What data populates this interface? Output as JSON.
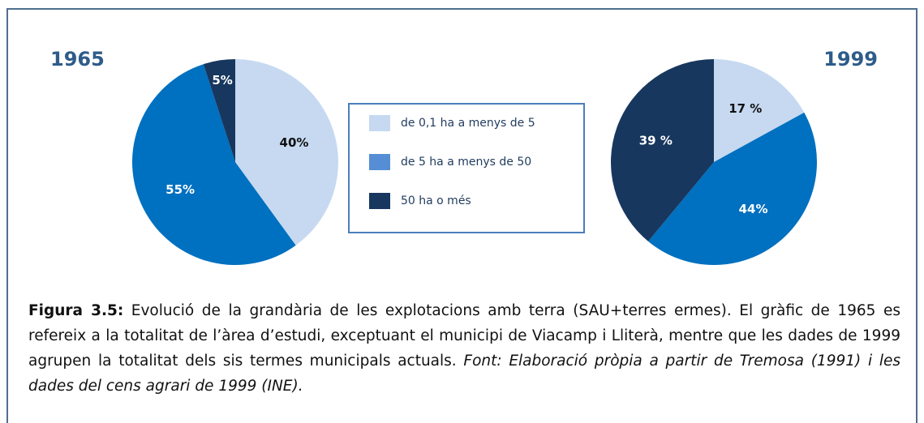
{
  "chart_data": [
    {
      "type": "pie",
      "title": "1965",
      "values": [
        40,
        55,
        5
      ],
      "value_labels": [
        "40%",
        "55%",
        "5%"
      ],
      "colors": [
        "#c6d9f1",
        "#0070c0",
        "#17375e"
      ]
    },
    {
      "type": "pie",
      "title": "1999",
      "values": [
        17,
        44,
        39
      ],
      "value_labels": [
        "17 %",
        "44%",
        "39 %"
      ],
      "colors": [
        "#c6d9f1",
        "#0070c0",
        "#17375e"
      ]
    }
  ],
  "legend": {
    "categories": [
      "de 0,1 ha a menys de 5",
      "de 5 ha a menys de 50",
      "50 ha o més"
    ],
    "colors": [
      "#c6d9f1",
      "#558ed5",
      "#17375e"
    ]
  },
  "caption": {
    "label": "Figura 3.5:",
    "text": " Evolució de la grandària de les explotacions amb terra (SAU+terres ermes). El gràfic de 1965 es refereix a la totalitat de l’àrea d’estudi, exceptuant el municipi de Viacamp i Lliterà, mentre que les dades de 1999 agrupen la totalitat dels sis termes municipals actuals. ",
    "source": "Font: Elaboració pròpia a partir de Tremosa (1991) i les dades del cens agrari de 1999 (INE)."
  }
}
